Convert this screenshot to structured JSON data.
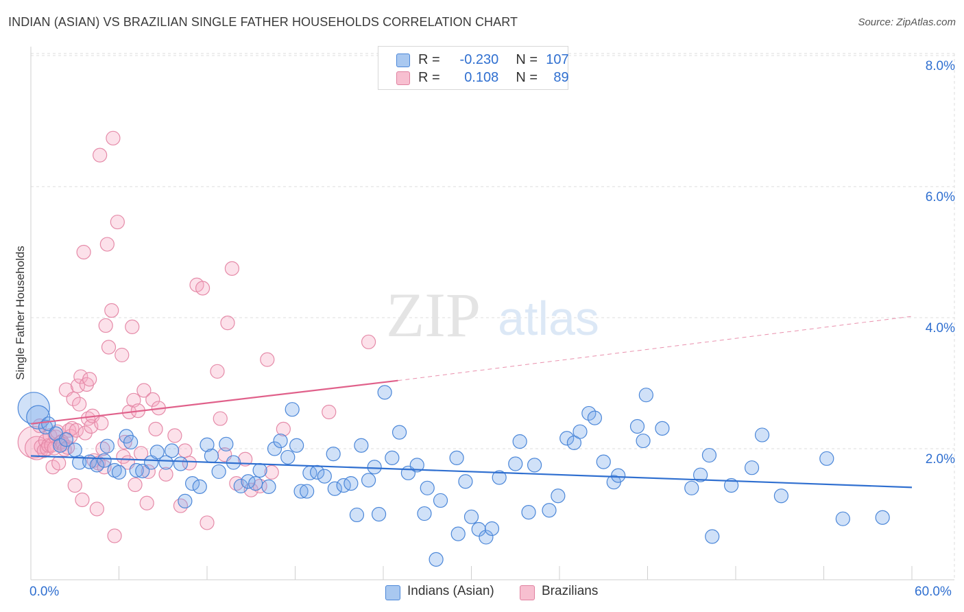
{
  "title": "INDIAN (ASIAN) VS BRAZILIAN SINGLE FATHER HOUSEHOLDS CORRELATION CHART",
  "source": "Source: ZipAtlas.com",
  "watermark": {
    "zip": "ZIP",
    "atlas": "atlas"
  },
  "legend": {
    "r_label": "R =",
    "n_label": "N =",
    "rows": [
      {
        "r": "-0.230",
        "n": "107",
        "fill": "#a9c8f0",
        "stroke": "#4a86d8"
      },
      {
        "r": "0.108",
        "n": "89",
        "fill": "#f7bfd0",
        "stroke": "#e0809f"
      }
    ]
  },
  "bottom_legend": [
    {
      "label": "Indians (Asian)",
      "fill": "#a9c8f0",
      "stroke": "#4a86d8"
    },
    {
      "label": "Brazilians",
      "fill": "#f7bfd0",
      "stroke": "#e0809f"
    }
  ],
  "colors": {
    "blue_point": "#4a86d8",
    "blue_fill": "rgba(120,170,235,0.35)",
    "pink_point": "#e58aa8",
    "pink_fill": "rgba(245,170,195,0.35)",
    "blue_line": "#2f6fd0",
    "pink_line": "#e0608a",
    "tick_text": "#2f6fd0",
    "grid": "#dcdcdc"
  },
  "chart_data": {
    "type": "scatter",
    "title": "INDIAN (ASIAN) VS BRAZILIAN SINGLE FATHER HOUSEHOLDS CORRELATION CHART",
    "xlabel": "",
    "ylabel": "Single Father Households",
    "xlim": [
      0,
      60
    ],
    "ylim": [
      0,
      8.3
    ],
    "x_tick_labels": [
      "0.0%",
      "60.0%"
    ],
    "y_ticks": [
      2,
      4,
      6,
      8
    ],
    "y_tick_labels": [
      "2.0%",
      "4.0%",
      "6.0%",
      "8.0%"
    ],
    "grid": true,
    "legend_position": "top-center",
    "series": [
      {
        "name": "Indians (Asian)",
        "r": -0.23,
        "n": 107,
        "trend": {
          "x0": 0,
          "y0": 1.89,
          "x1": 60,
          "y1": 1.41
        },
        "points": [
          [
            0.2,
            2.62,
            "l"
          ],
          [
            0.5,
            2.48,
            "m"
          ],
          [
            1.0,
            2.33,
            "s"
          ],
          [
            1.2,
            2.38,
            "s"
          ],
          [
            1.7,
            2.23,
            "s"
          ],
          [
            2.0,
            2.05,
            "s"
          ],
          [
            2.4,
            2.14,
            "s"
          ],
          [
            3.0,
            1.98,
            "s"
          ],
          [
            3.3,
            1.79,
            "s"
          ],
          [
            4.0,
            1.8,
            "s"
          ],
          [
            4.5,
            1.75,
            "s"
          ],
          [
            5.0,
            1.82,
            "s"
          ],
          [
            5.2,
            2.04,
            "s"
          ],
          [
            5.7,
            1.67,
            "s"
          ],
          [
            6.0,
            1.64,
            "s"
          ],
          [
            6.5,
            2.19,
            "s"
          ],
          [
            6.8,
            2.1,
            "s"
          ],
          [
            7.2,
            1.67,
            "s"
          ],
          [
            7.6,
            1.66,
            "s"
          ],
          [
            8.2,
            1.79,
            "s"
          ],
          [
            8.6,
            1.95,
            "s"
          ],
          [
            9.2,
            1.79,
            "s"
          ],
          [
            9.6,
            1.97,
            "s"
          ],
          [
            10.2,
            1.77,
            "s"
          ],
          [
            10.5,
            1.2,
            "s"
          ],
          [
            11.0,
            1.47,
            "s"
          ],
          [
            11.5,
            1.42,
            "s"
          ],
          [
            12.0,
            2.06,
            "s"
          ],
          [
            12.3,
            1.89,
            "s"
          ],
          [
            12.8,
            1.65,
            "s"
          ],
          [
            13.3,
            2.07,
            "s"
          ],
          [
            13.8,
            1.79,
            "s"
          ],
          [
            14.3,
            1.43,
            "s"
          ],
          [
            14.8,
            1.5,
            "s"
          ],
          [
            15.3,
            1.47,
            "s"
          ],
          [
            15.6,
            1.67,
            "s"
          ],
          [
            16.2,
            1.42,
            "s"
          ],
          [
            16.6,
            2.0,
            "s"
          ],
          [
            17.0,
            2.12,
            "s"
          ],
          [
            17.5,
            1.87,
            "s"
          ],
          [
            17.8,
            2.6,
            "s"
          ],
          [
            18.1,
            2.05,
            "s"
          ],
          [
            18.4,
            1.35,
            "s"
          ],
          [
            18.8,
            1.35,
            "s"
          ],
          [
            19.0,
            1.63,
            "s"
          ],
          [
            19.5,
            1.64,
            "s"
          ],
          [
            20.0,
            1.58,
            "s"
          ],
          [
            20.6,
            1.92,
            "s"
          ],
          [
            20.7,
            1.39,
            "s"
          ],
          [
            21.3,
            1.44,
            "s"
          ],
          [
            21.8,
            1.47,
            "s"
          ],
          [
            22.2,
            0.99,
            "s"
          ],
          [
            22.5,
            2.05,
            "s"
          ],
          [
            23.0,
            1.52,
            "s"
          ],
          [
            23.4,
            1.72,
            "s"
          ],
          [
            23.7,
            1.0,
            "s"
          ],
          [
            24.1,
            2.86,
            "s"
          ],
          [
            24.6,
            1.86,
            "s"
          ],
          [
            25.1,
            2.25,
            "s"
          ],
          [
            25.7,
            1.63,
            "s"
          ],
          [
            26.3,
            1.75,
            "s"
          ],
          [
            26.8,
            1.01,
            "s"
          ],
          [
            27.0,
            1.4,
            "s"
          ],
          [
            27.6,
            0.31,
            "s"
          ],
          [
            27.9,
            1.21,
            "s"
          ],
          [
            29.0,
            1.86,
            "s"
          ],
          [
            29.1,
            0.7,
            "s"
          ],
          [
            29.6,
            1.5,
            "s"
          ],
          [
            30.0,
            0.96,
            "s"
          ],
          [
            30.5,
            0.77,
            "s"
          ],
          [
            31.0,
            0.65,
            "s"
          ],
          [
            31.4,
            0.78,
            "s"
          ],
          [
            31.9,
            1.56,
            "s"
          ],
          [
            33.0,
            1.77,
            "s"
          ],
          [
            33.3,
            2.11,
            "s"
          ],
          [
            33.9,
            1.03,
            "s"
          ],
          [
            34.3,
            1.75,
            "s"
          ],
          [
            35.3,
            1.06,
            "s"
          ],
          [
            35.9,
            1.28,
            "s"
          ],
          [
            36.5,
            2.16,
            "s"
          ],
          [
            37.0,
            2.09,
            "s"
          ],
          [
            37.4,
            2.26,
            "s"
          ],
          [
            38.0,
            2.54,
            "s"
          ],
          [
            38.4,
            2.47,
            "s"
          ],
          [
            39.0,
            1.8,
            "s"
          ],
          [
            39.7,
            1.49,
            "s"
          ],
          [
            40.0,
            1.59,
            "s"
          ],
          [
            41.3,
            2.34,
            "s"
          ],
          [
            41.7,
            2.12,
            "s"
          ],
          [
            41.9,
            2.82,
            "s"
          ],
          [
            43.0,
            2.31,
            "s"
          ],
          [
            45.0,
            1.4,
            "s"
          ],
          [
            45.6,
            1.6,
            "s"
          ],
          [
            46.2,
            1.9,
            "s"
          ],
          [
            46.4,
            0.66,
            "s"
          ],
          [
            47.7,
            1.44,
            "s"
          ],
          [
            49.1,
            1.71,
            "s"
          ],
          [
            49.8,
            2.21,
            "s"
          ],
          [
            51.1,
            1.28,
            "s"
          ],
          [
            54.2,
            1.85,
            "s"
          ],
          [
            55.3,
            0.93,
            "s"
          ],
          [
            58.0,
            0.95,
            "s"
          ]
        ]
      },
      {
        "name": "Brazilians",
        "r": 0.108,
        "n": 89,
        "trend": {
          "x0": 0,
          "y0": 2.38,
          "x1": 25,
          "y1": 3.04,
          "dash_x1": 60,
          "dash_y1": 4.02
        },
        "points": [
          [
            0.2,
            2.1,
            "l"
          ],
          [
            0.4,
            2.01,
            "m"
          ],
          [
            0.6,
            2.35,
            "s"
          ],
          [
            0.7,
            2.03,
            "s"
          ],
          [
            0.9,
            1.97,
            "s"
          ],
          [
            1.0,
            2.12,
            "s"
          ],
          [
            1.1,
            2.0,
            "s"
          ],
          [
            1.2,
            2.05,
            "s"
          ],
          [
            1.3,
            2.2,
            "s"
          ],
          [
            1.4,
            2.05,
            "s"
          ],
          [
            1.5,
            1.72,
            "s"
          ],
          [
            1.6,
            2.01,
            "s"
          ],
          [
            1.7,
            2.18,
            "s"
          ],
          [
            1.8,
            2.26,
            "s"
          ],
          [
            1.9,
            1.78,
            "s"
          ],
          [
            2.0,
            2.09,
            "s"
          ],
          [
            2.1,
            2.11,
            "s"
          ],
          [
            2.2,
            2.07,
            "s"
          ],
          [
            2.3,
            1.99,
            "s"
          ],
          [
            2.4,
            2.9,
            "s"
          ],
          [
            2.5,
            2.02,
            "s"
          ],
          [
            2.6,
            2.28,
            "s"
          ],
          [
            2.7,
            2.19,
            "s"
          ],
          [
            2.8,
            2.31,
            "s"
          ],
          [
            2.9,
            2.76,
            "s"
          ],
          [
            3.0,
            1.44,
            "s"
          ],
          [
            3.1,
            2.28,
            "s"
          ],
          [
            3.2,
            2.96,
            "s"
          ],
          [
            3.3,
            2.68,
            "s"
          ],
          [
            3.4,
            3.1,
            "s"
          ],
          [
            3.5,
            1.22,
            "s"
          ],
          [
            3.6,
            5.0,
            "s"
          ],
          [
            3.7,
            2.24,
            "s"
          ],
          [
            3.8,
            2.98,
            "s"
          ],
          [
            3.9,
            2.46,
            "s"
          ],
          [
            4.0,
            3.06,
            "s"
          ],
          [
            4.1,
            2.34,
            "s"
          ],
          [
            4.2,
            2.5,
            "s"
          ],
          [
            4.3,
            1.82,
            "s"
          ],
          [
            4.5,
            1.08,
            "s"
          ],
          [
            4.6,
            1.78,
            "s"
          ],
          [
            4.7,
            6.48,
            "s"
          ],
          [
            4.8,
            2.39,
            "s"
          ],
          [
            4.9,
            2.0,
            "s"
          ],
          [
            5.0,
            1.72,
            "s"
          ],
          [
            5.1,
            3.88,
            "s"
          ],
          [
            5.2,
            5.12,
            "s"
          ],
          [
            5.3,
            3.55,
            "s"
          ],
          [
            5.5,
            4.11,
            "s"
          ],
          [
            5.6,
            6.74,
            "s"
          ],
          [
            5.7,
            0.67,
            "s"
          ],
          [
            5.9,
            5.46,
            "s"
          ],
          [
            6.2,
            3.43,
            "s"
          ],
          [
            6.3,
            1.88,
            "s"
          ],
          [
            6.4,
            2.1,
            "s"
          ],
          [
            6.6,
            1.79,
            "s"
          ],
          [
            6.7,
            2.56,
            "s"
          ],
          [
            6.9,
            3.86,
            "s"
          ],
          [
            7.0,
            2.74,
            "s"
          ],
          [
            7.1,
            1.45,
            "s"
          ],
          [
            7.3,
            2.58,
            "s"
          ],
          [
            7.5,
            1.93,
            "s"
          ],
          [
            7.7,
            2.89,
            "s"
          ],
          [
            7.9,
            1.17,
            "s"
          ],
          [
            8.0,
            1.65,
            "s"
          ],
          [
            8.3,
            2.75,
            "s"
          ],
          [
            8.5,
            2.3,
            "s"
          ],
          [
            8.7,
            2.62,
            "s"
          ],
          [
            9.2,
            1.61,
            "s"
          ],
          [
            9.8,
            2.2,
            "s"
          ],
          [
            10.2,
            1.13,
            "s"
          ],
          [
            10.5,
            1.97,
            "s"
          ],
          [
            10.8,
            1.78,
            "s"
          ],
          [
            11.3,
            4.5,
            "s"
          ],
          [
            11.7,
            4.45,
            "s"
          ],
          [
            12.0,
            0.87,
            "s"
          ],
          [
            12.7,
            3.18,
            "s"
          ],
          [
            12.9,
            2.46,
            "s"
          ],
          [
            13.2,
            1.91,
            "s"
          ],
          [
            13.4,
            3.92,
            "s"
          ],
          [
            13.7,
            4.75,
            "s"
          ],
          [
            14.0,
            1.47,
            "s"
          ],
          [
            14.6,
            1.84,
            "s"
          ],
          [
            15.0,
            1.37,
            "s"
          ],
          [
            15.6,
            1.43,
            "s"
          ],
          [
            16.1,
            3.36,
            "s"
          ],
          [
            16.4,
            1.64,
            "s"
          ],
          [
            17.2,
            2.3,
            "s"
          ],
          [
            20.3,
            2.56,
            "s"
          ],
          [
            23.0,
            3.63,
            "s"
          ]
        ]
      }
    ]
  }
}
